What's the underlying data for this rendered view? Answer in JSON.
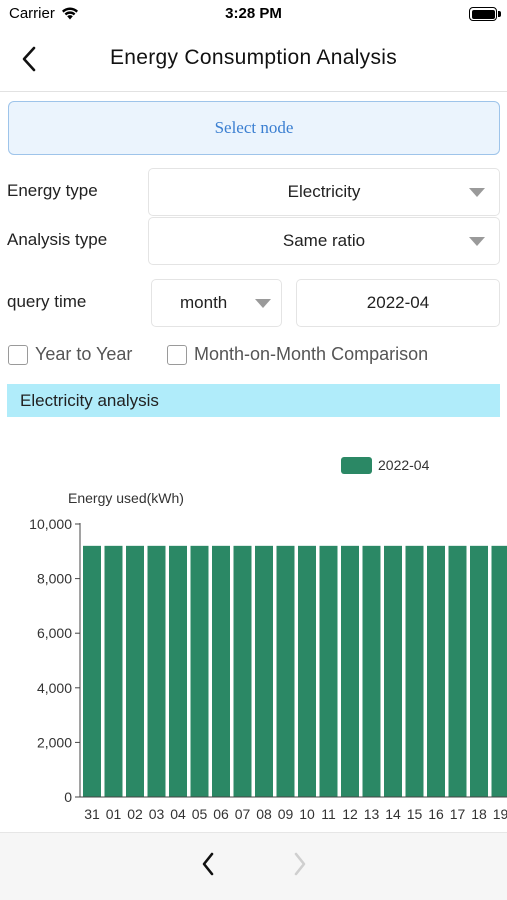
{
  "status_bar": {
    "carrier": "Carrier",
    "time": "3:28 PM"
  },
  "header": {
    "title": "Energy Consumption Analysis"
  },
  "select_node": {
    "label": "Select node"
  },
  "filters": {
    "energy_type_label": "Energy type",
    "energy_type_value": "Electricity",
    "analysis_type_label": "Analysis type",
    "analysis_type_value": "Same ratio",
    "query_time_label": "query time",
    "period_value": "month",
    "date_value": "2022-04"
  },
  "comparisons": {
    "year_to_year": {
      "label": "Year to Year",
      "checked": false
    },
    "month_on_month": {
      "label": "Month-on-Month Comparison",
      "checked": false
    }
  },
  "section": {
    "title": "Electricity analysis"
  },
  "colors": {
    "bar": "#2b8865",
    "header_bg": "#b0ecfa",
    "select_node_bg": "#ebf4fd",
    "select_node_text": "#3b7fd1"
  },
  "chart_data": {
    "type": "bar",
    "legend_position": "top-right",
    "ylabel": "Energy used(kWh)",
    "ylim": [
      0,
      10000
    ],
    "y_ticks": [
      0,
      2000,
      4000,
      6000,
      8000,
      10000
    ],
    "y_tick_labels": [
      "0",
      "2,000",
      "4,000",
      "6,000",
      "8,000",
      "10,000"
    ],
    "categories": [
      "31",
      "01",
      "02",
      "03",
      "04",
      "05",
      "06",
      "07",
      "08",
      "09",
      "10",
      "11",
      "12",
      "13",
      "14",
      "15",
      "16",
      "17",
      "18",
      "19"
    ],
    "series": [
      {
        "name": "2022-04",
        "values": [
          9200,
          9200,
          9200,
          9200,
          9200,
          9200,
          9200,
          9200,
          9200,
          9200,
          9200,
          9200,
          9200,
          9200,
          9200,
          9200,
          9200,
          9200,
          9200,
          9200
        ]
      }
    ]
  }
}
